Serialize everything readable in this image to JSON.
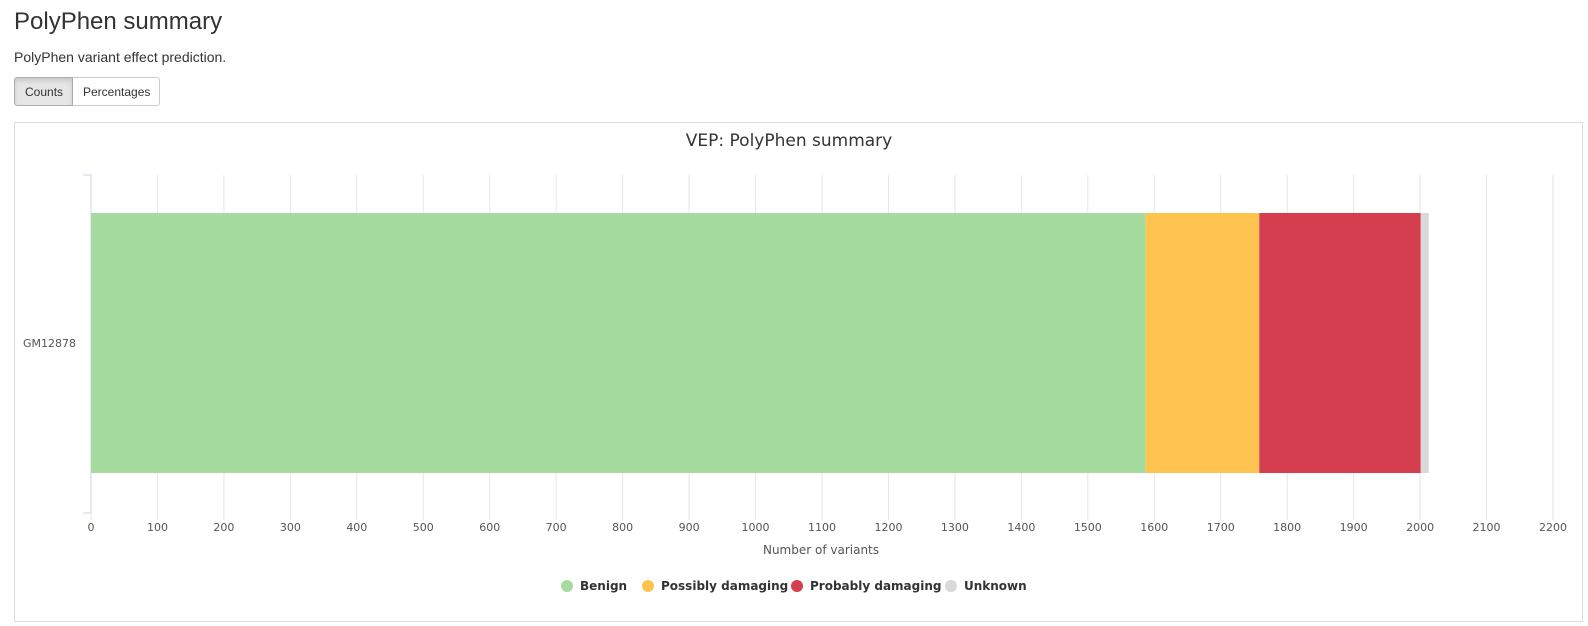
{
  "header": {
    "title": "PolyPhen summary",
    "description": "PolyPhen variant effect prediction."
  },
  "toggle": {
    "counts_label": "Counts",
    "percentages_label": "Percentages",
    "active": "Counts"
  },
  "chart_data": {
    "type": "bar",
    "orientation": "horizontal",
    "stacked": true,
    "title": "VEP: PolyPhen summary",
    "xlabel": "Number of variants",
    "ylabel": "",
    "categories": [
      "GM12878"
    ],
    "series": [
      {
        "name": "Benign",
        "color": "#a6dba0",
        "values": [
          1587
        ]
      },
      {
        "name": "Possibly damaging",
        "color": "#fec44f",
        "values": [
          171
        ]
      },
      {
        "name": "Probably damaging",
        "color": "#d53e4f",
        "values": [
          243
        ]
      },
      {
        "name": "Unknown",
        "color": "#d9d9d9",
        "values": [
          12
        ]
      }
    ],
    "xlim": [
      0,
      2200
    ],
    "xticks": [
      0,
      100,
      200,
      300,
      400,
      500,
      600,
      700,
      800,
      900,
      1000,
      1100,
      1200,
      1300,
      1400,
      1500,
      1600,
      1700,
      1800,
      1900,
      2000,
      2100,
      2200
    ],
    "grid": true,
    "legend_position": "bottom"
  }
}
